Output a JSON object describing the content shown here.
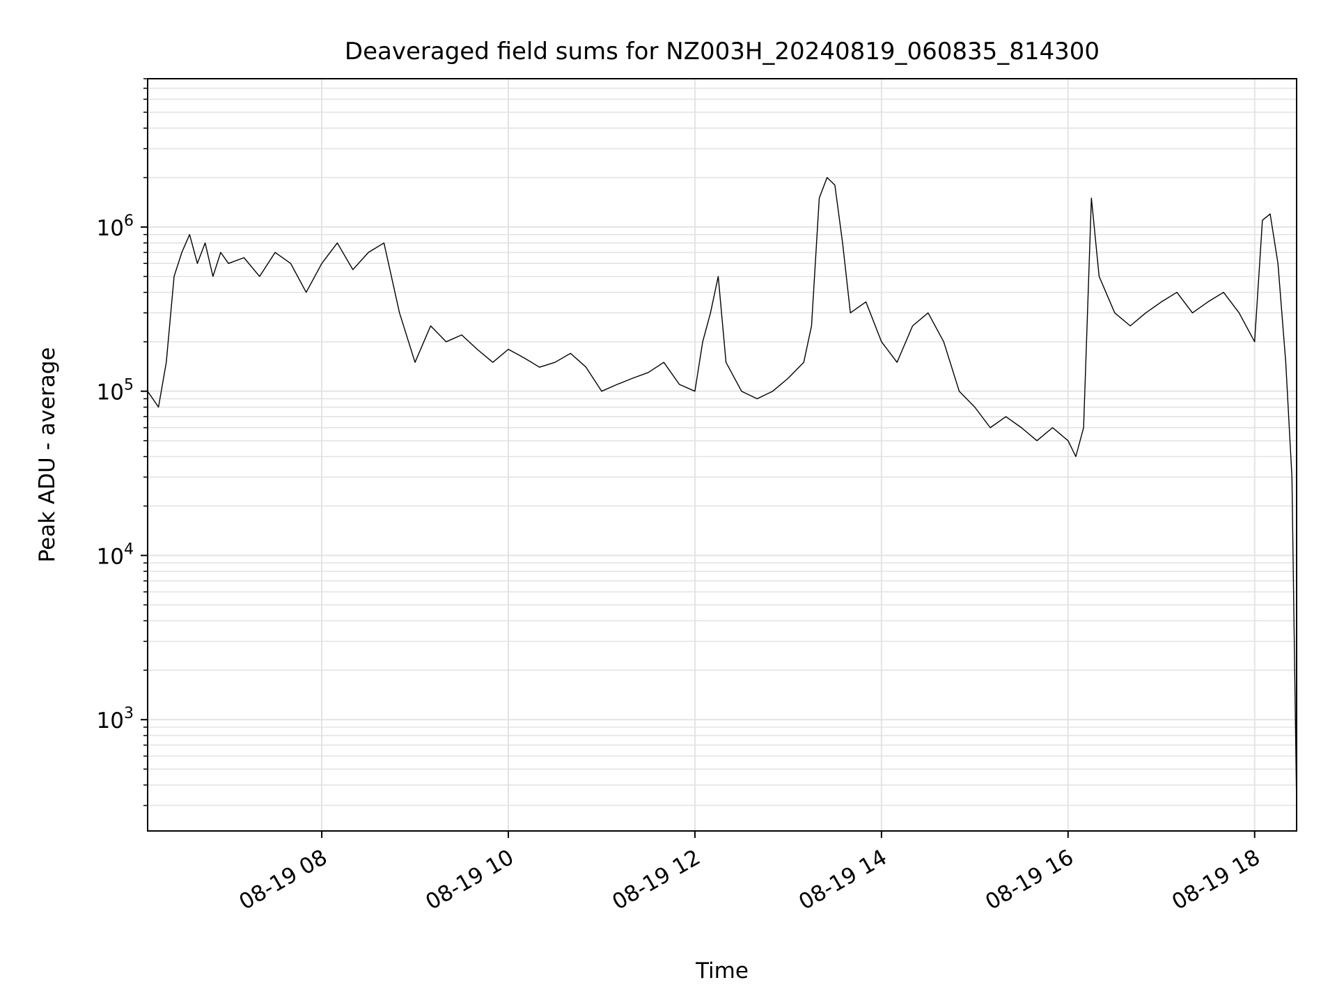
{
  "chart_data": {
    "type": "line",
    "title": "Deaveraged field sums for NZ003H_20240819_060835_814300",
    "xlabel": "Time",
    "ylabel": "Peak ADU - average",
    "yscale": "log",
    "ylim": [
      210,
      8000000
    ],
    "xlim": [
      "08-19 06:08",
      "08-19 18:27"
    ],
    "grid": true,
    "legend": "none",
    "line_color": "#000000",
    "x_ticks": [
      {
        "value": "08-19 08:00",
        "label": "08-19 08"
      },
      {
        "value": "08-19 10:00",
        "label": "08-19 10"
      },
      {
        "value": "08-19 12:00",
        "label": "08-19 12"
      },
      {
        "value": "08-19 14:00",
        "label": "08-19 14"
      },
      {
        "value": "08-19 16:00",
        "label": "08-19 16"
      },
      {
        "value": "08-19 18:00",
        "label": "08-19 18"
      }
    ],
    "y_ticks": [
      {
        "value": 1000,
        "base": "10",
        "exp": "3"
      },
      {
        "value": 10000,
        "base": "10",
        "exp": "4"
      },
      {
        "value": 100000,
        "base": "10",
        "exp": "5"
      },
      {
        "value": 1000000,
        "base": "10",
        "exp": "6"
      }
    ],
    "series": [
      {
        "x": [
          "08-19 06:08",
          "08-19 06:15",
          "08-19 06:20",
          "08-19 06:25",
          "08-19 06:30",
          "08-19 06:35",
          "08-19 06:40",
          "08-19 06:45",
          "08-19 06:50",
          "08-19 06:55",
          "08-19 07:00",
          "08-19 07:10",
          "08-19 07:20",
          "08-19 07:30",
          "08-19 07:40",
          "08-19 07:50",
          "08-19 08:00",
          "08-19 08:10",
          "08-19 08:20",
          "08-19 08:30",
          "08-19 08:40",
          "08-19 08:50",
          "08-19 09:00",
          "08-19 09:10",
          "08-19 09:20",
          "08-19 09:30",
          "08-19 09:40",
          "08-19 09:50",
          "08-19 10:00",
          "08-19 10:10",
          "08-19 10:20",
          "08-19 10:30",
          "08-19 10:40",
          "08-19 10:50",
          "08-19 11:00",
          "08-19 11:10",
          "08-19 11:20",
          "08-19 11:30",
          "08-19 11:40",
          "08-19 11:50",
          "08-19 12:00",
          "08-19 12:05",
          "08-19 12:10",
          "08-19 12:15",
          "08-19 12:20",
          "08-19 12:30",
          "08-19 12:40",
          "08-19 12:50",
          "08-19 13:00",
          "08-19 13:10",
          "08-19 13:15",
          "08-19 13:20",
          "08-19 13:25",
          "08-19 13:30",
          "08-19 13:35",
          "08-19 13:40",
          "08-19 13:50",
          "08-19 14:00",
          "08-19 14:10",
          "08-19 14:20",
          "08-19 14:30",
          "08-19 14:40",
          "08-19 14:50",
          "08-19 15:00",
          "08-19 15:10",
          "08-19 15:20",
          "08-19 15:30",
          "08-19 15:40",
          "08-19 15:50",
          "08-19 16:00",
          "08-19 16:05",
          "08-19 16:10",
          "08-19 16:15",
          "08-19 16:20",
          "08-19 16:30",
          "08-19 16:40",
          "08-19 16:50",
          "08-19 17:00",
          "08-19 17:10",
          "08-19 17:20",
          "08-19 17:30",
          "08-19 17:40",
          "08-19 17:50",
          "08-19 18:00",
          "08-19 18:05",
          "08-19 18:10",
          "08-19 18:15",
          "08-19 18:20",
          "08-19 18:24",
          "08-19 18:27"
        ],
        "y": [
          100000,
          80000,
          150000,
          500000,
          700000,
          900000,
          600000,
          800000,
          500000,
          700000,
          600000,
          650000,
          500000,
          700000,
          600000,
          400000,
          600000,
          800000,
          550000,
          700000,
          800000,
          300000,
          150000,
          250000,
          200000,
          220000,
          180000,
          150000,
          180000,
          160000,
          140000,
          150000,
          170000,
          140000,
          100000,
          110000,
          120000,
          130000,
          150000,
          110000,
          100000,
          200000,
          300000,
          500000,
          150000,
          100000,
          90000,
          100000,
          120000,
          150000,
          250000,
          1500000,
          2000000,
          1800000,
          800000,
          300000,
          350000,
          200000,
          150000,
          250000,
          300000,
          200000,
          100000,
          80000,
          60000,
          70000,
          60000,
          50000,
          60000,
          50000,
          40000,
          60000,
          1500000,
          500000,
          300000,
          250000,
          300000,
          350000,
          400000,
          300000,
          350000,
          400000,
          300000,
          200000,
          1100000,
          1200000,
          600000,
          150000,
          30000,
          300
        ]
      }
    ]
  }
}
